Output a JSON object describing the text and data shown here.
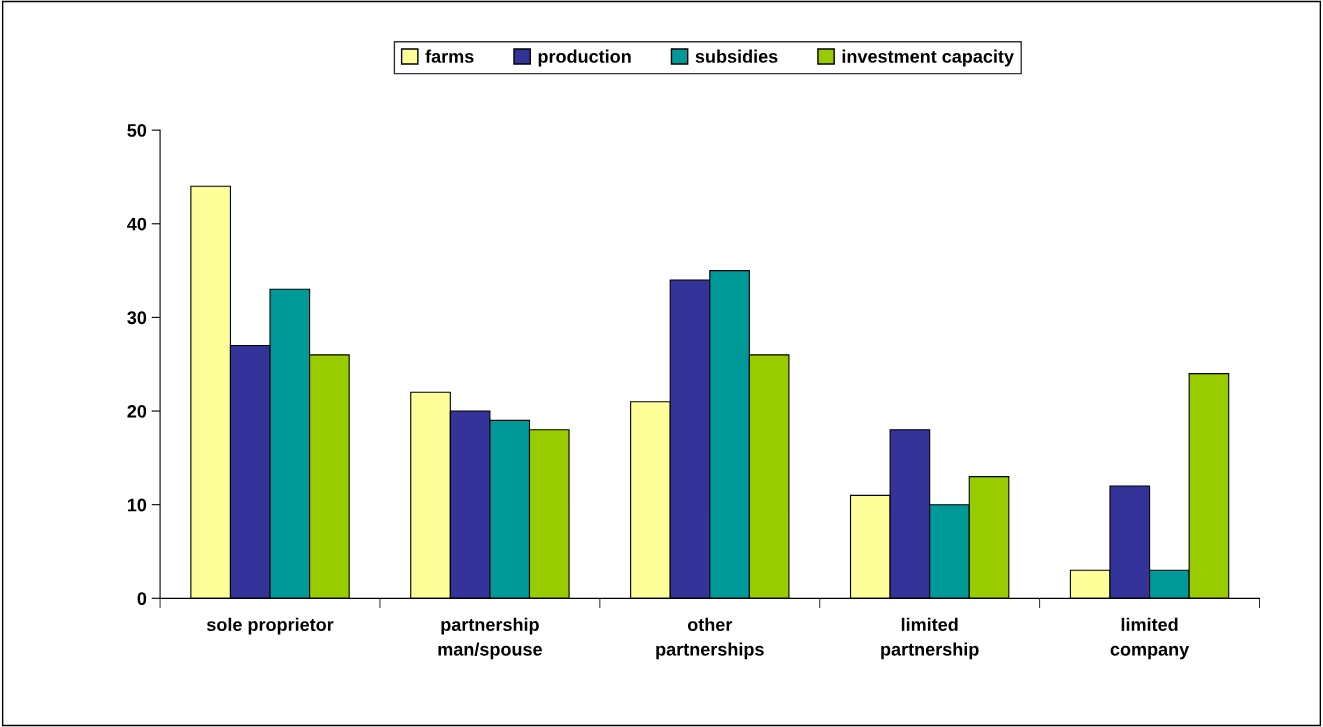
{
  "chart_data": {
    "type": "bar",
    "categories": [
      "sole proprietor",
      "partnership\nman/spouse",
      "other\npartnerships",
      "limited\npartnership",
      "limited\ncompany"
    ],
    "series": [
      {
        "name": "farms",
        "color": "#ffff99",
        "values": [
          44,
          22,
          21,
          11,
          3
        ]
      },
      {
        "name": "production",
        "color": "#333399",
        "values": [
          27,
          20,
          34,
          18,
          12
        ]
      },
      {
        "name": "subsidies",
        "color": "#009999",
        "values": [
          33,
          19,
          35,
          10,
          3
        ]
      },
      {
        "name": "investment capacity",
        "color": "#99cc00",
        "values": [
          26,
          18,
          26,
          13,
          24
        ]
      }
    ],
    "ylim": [
      0,
      50
    ],
    "yticks": [
      0,
      10,
      20,
      30,
      40,
      50
    ],
    "grid": false,
    "legend": "top"
  }
}
